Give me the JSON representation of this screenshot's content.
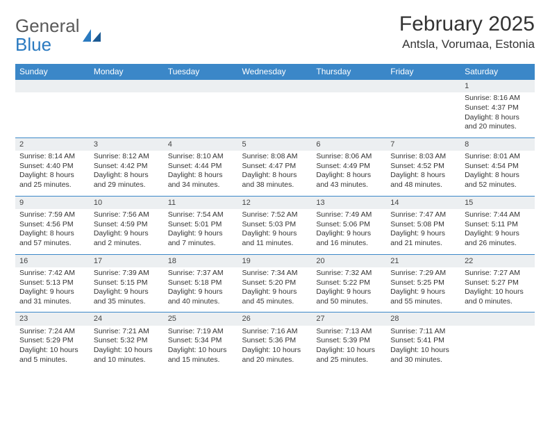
{
  "brand": {
    "word1": "General",
    "word2": "Blue"
  },
  "title": "February 2025",
  "location": "Antsla, Vorumaa, Estonia",
  "colors": {
    "headerBg": "#3b87c8",
    "headerText": "#ffffff",
    "dayRowBg": "#eceff1",
    "borderTop": "#3b87c8",
    "bodyText": "#333333",
    "logoGray": "#5a5a5a",
    "logoBlue": "#2a7ac0"
  },
  "weekdays": [
    "Sunday",
    "Monday",
    "Tuesday",
    "Wednesday",
    "Thursday",
    "Friday",
    "Saturday"
  ],
  "weeks": [
    {
      "nums": [
        "",
        "",
        "",
        "",
        "",
        "",
        "1"
      ],
      "info": [
        "",
        "",
        "",
        "",
        "",
        "",
        "Sunrise: 8:16 AM\nSunset: 4:37 PM\nDaylight: 8 hours and 20 minutes."
      ]
    },
    {
      "nums": [
        "2",
        "3",
        "4",
        "5",
        "6",
        "7",
        "8"
      ],
      "info": [
        "Sunrise: 8:14 AM\nSunset: 4:40 PM\nDaylight: 8 hours and 25 minutes.",
        "Sunrise: 8:12 AM\nSunset: 4:42 PM\nDaylight: 8 hours and 29 minutes.",
        "Sunrise: 8:10 AM\nSunset: 4:44 PM\nDaylight: 8 hours and 34 minutes.",
        "Sunrise: 8:08 AM\nSunset: 4:47 PM\nDaylight: 8 hours and 38 minutes.",
        "Sunrise: 8:06 AM\nSunset: 4:49 PM\nDaylight: 8 hours and 43 minutes.",
        "Sunrise: 8:03 AM\nSunset: 4:52 PM\nDaylight: 8 hours and 48 minutes.",
        "Sunrise: 8:01 AM\nSunset: 4:54 PM\nDaylight: 8 hours and 52 minutes."
      ]
    },
    {
      "nums": [
        "9",
        "10",
        "11",
        "12",
        "13",
        "14",
        "15"
      ],
      "info": [
        "Sunrise: 7:59 AM\nSunset: 4:56 PM\nDaylight: 8 hours and 57 minutes.",
        "Sunrise: 7:56 AM\nSunset: 4:59 PM\nDaylight: 9 hours and 2 minutes.",
        "Sunrise: 7:54 AM\nSunset: 5:01 PM\nDaylight: 9 hours and 7 minutes.",
        "Sunrise: 7:52 AM\nSunset: 5:03 PM\nDaylight: 9 hours and 11 minutes.",
        "Sunrise: 7:49 AM\nSunset: 5:06 PM\nDaylight: 9 hours and 16 minutes.",
        "Sunrise: 7:47 AM\nSunset: 5:08 PM\nDaylight: 9 hours and 21 minutes.",
        "Sunrise: 7:44 AM\nSunset: 5:11 PM\nDaylight: 9 hours and 26 minutes."
      ]
    },
    {
      "nums": [
        "16",
        "17",
        "18",
        "19",
        "20",
        "21",
        "22"
      ],
      "info": [
        "Sunrise: 7:42 AM\nSunset: 5:13 PM\nDaylight: 9 hours and 31 minutes.",
        "Sunrise: 7:39 AM\nSunset: 5:15 PM\nDaylight: 9 hours and 35 minutes.",
        "Sunrise: 7:37 AM\nSunset: 5:18 PM\nDaylight: 9 hours and 40 minutes.",
        "Sunrise: 7:34 AM\nSunset: 5:20 PM\nDaylight: 9 hours and 45 minutes.",
        "Sunrise: 7:32 AM\nSunset: 5:22 PM\nDaylight: 9 hours and 50 minutes.",
        "Sunrise: 7:29 AM\nSunset: 5:25 PM\nDaylight: 9 hours and 55 minutes.",
        "Sunrise: 7:27 AM\nSunset: 5:27 PM\nDaylight: 10 hours and 0 minutes."
      ]
    },
    {
      "nums": [
        "23",
        "24",
        "25",
        "26",
        "27",
        "28",
        ""
      ],
      "info": [
        "Sunrise: 7:24 AM\nSunset: 5:29 PM\nDaylight: 10 hours and 5 minutes.",
        "Sunrise: 7:21 AM\nSunset: 5:32 PM\nDaylight: 10 hours and 10 minutes.",
        "Sunrise: 7:19 AM\nSunset: 5:34 PM\nDaylight: 10 hours and 15 minutes.",
        "Sunrise: 7:16 AM\nSunset: 5:36 PM\nDaylight: 10 hours and 20 minutes.",
        "Sunrise: 7:13 AM\nSunset: 5:39 PM\nDaylight: 10 hours and 25 minutes.",
        "Sunrise: 7:11 AM\nSunset: 5:41 PM\nDaylight: 10 hours and 30 minutes.",
        ""
      ]
    }
  ]
}
